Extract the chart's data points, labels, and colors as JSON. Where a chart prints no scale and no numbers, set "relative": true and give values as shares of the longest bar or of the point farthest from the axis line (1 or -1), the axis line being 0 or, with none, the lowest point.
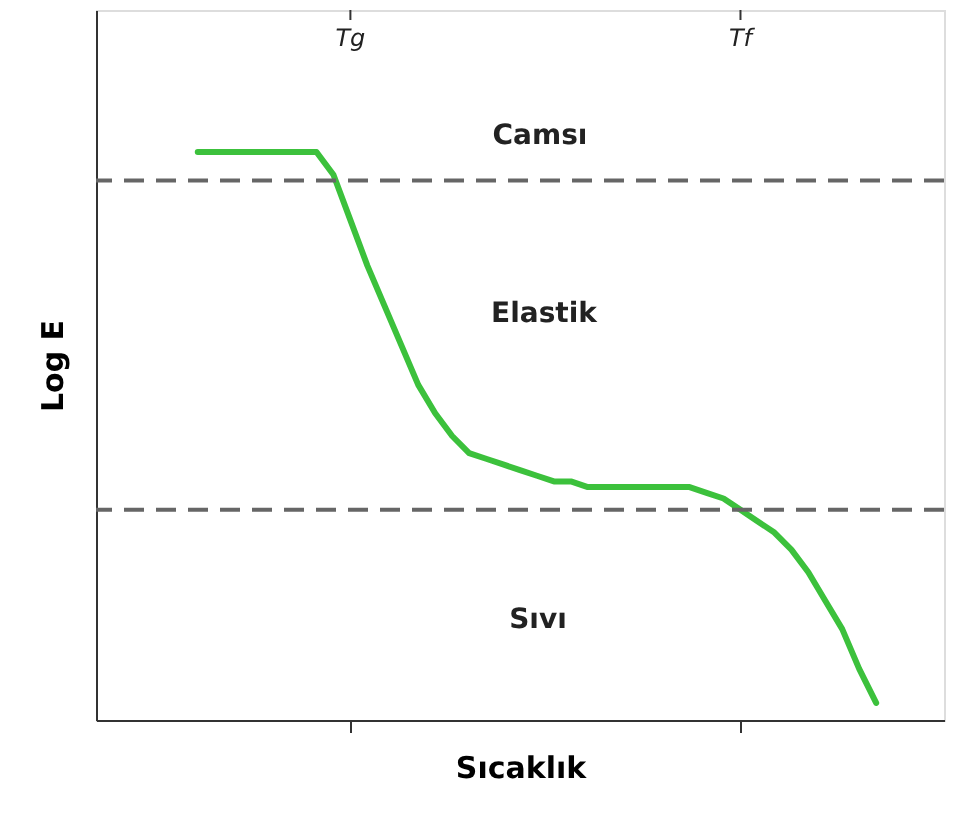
{
  "chart_data": {
    "type": "line",
    "relative": true,
    "xlabel": "Sıcaklık",
    "ylabel": "Log E",
    "categories": [
      null,
      null,
      null,
      null,
      null,
      null,
      null,
      null,
      null,
      "Tg",
      null,
      null,
      null,
      null,
      null,
      null,
      null,
      null,
      null,
      null,
      null,
      null,
      null,
      null,
      null,
      null,
      null,
      null,
      null,
      null,
      null,
      null,
      "Tf",
      null,
      null,
      null,
      null,
      null,
      null,
      null,
      null
    ],
    "series": [
      {
        "color": "#3cc13c",
        "values": [
          1.0,
          1.0,
          1.0,
          1.0,
          1.0,
          1.0,
          1.0,
          1.0,
          0.96,
          0.88,
          0.8,
          0.73,
          0.66,
          0.59,
          0.54,
          0.5,
          0.47,
          0.46,
          0.45,
          0.44,
          0.43,
          0.42,
          0.42,
          0.41,
          0.41,
          0.41,
          0.41,
          0.41,
          0.41,
          0.41,
          0.4,
          0.39,
          0.37,
          0.35,
          0.33,
          0.3,
          0.26,
          0.21,
          0.16,
          0.09,
          0.03
        ]
      }
    ],
    "ref_lines": [
      {
        "axis": "y",
        "value": 0.95,
        "label": null,
        "color": "#666666",
        "line_style": "dashed"
      },
      {
        "axis": "y",
        "value": 0.37,
        "label": null,
        "color": "#666666",
        "line_style": "dashed"
      }
    ],
    "annotations": [
      "Camsı",
      "Elastik",
      "Sıvı"
    ],
    "grid": false,
    "marker": "none",
    "line_style": "solid"
  }
}
